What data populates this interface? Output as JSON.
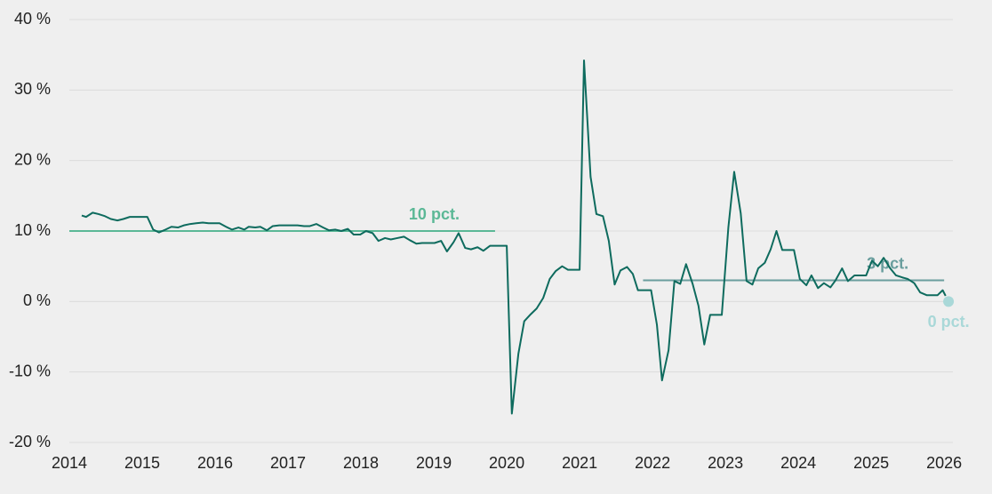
{
  "chart_data": {
    "type": "line",
    "x": [
      2014.17,
      2014.23,
      2014.32,
      2014.4,
      2014.49,
      2014.57,
      2014.66,
      2014.74,
      2014.83,
      2014.91,
      2014.99,
      2015.07,
      2015.15,
      2015.23,
      2015.32,
      2015.4,
      2015.49,
      2015.57,
      2015.66,
      2015.74,
      2015.83,
      2015.91,
      2015.99,
      2016.06,
      2016.15,
      2016.23,
      2016.32,
      2016.4,
      2016.46,
      2016.55,
      2016.62,
      2016.71,
      2016.79,
      2016.88,
      2016.96,
      2017.05,
      2017.13,
      2017.22,
      2017.3,
      2017.39,
      2017.48,
      2017.56,
      2017.65,
      2017.73,
      2017.82,
      2017.9,
      2017.99,
      2018.07,
      2018.16,
      2018.24,
      2018.33,
      2018.41,
      2018.5,
      2018.59,
      2018.67,
      2018.76,
      2018.84,
      2018.93,
      2019.01,
      2019.1,
      2019.18,
      2019.27,
      2019.34,
      2019.43,
      2019.51,
      2019.6,
      2019.68,
      2019.77,
      2019.85,
      2019.94,
      2020.0,
      2020.07,
      2020.16,
      2020.24,
      2020.33,
      2020.41,
      2020.5,
      2020.59,
      2020.67,
      2020.76,
      2020.84,
      2020.93,
      2021.0,
      2021.06,
      2021.15,
      2021.23,
      2021.32,
      2021.4,
      2021.48,
      2021.56,
      2021.65,
      2021.73,
      2021.8,
      2021.89,
      2021.98,
      2022.06,
      2022.13,
      2022.22,
      2022.3,
      2022.38,
      2022.46,
      2022.55,
      2022.63,
      2022.71,
      2022.79,
      2022.88,
      2022.95,
      2023.04,
      2023.12,
      2023.21,
      2023.29,
      2023.37,
      2023.45,
      2023.54,
      2023.62,
      2023.7,
      2023.78,
      2023.87,
      2023.94,
      2024.02,
      2024.11,
      2024.18,
      2024.27,
      2024.35,
      2024.44,
      2024.51,
      2024.6,
      2024.68,
      2024.77,
      2024.84,
      2024.93,
      2025.01,
      2025.09,
      2025.17,
      2025.26,
      2025.34,
      2025.43,
      2025.5,
      2025.59,
      2025.67,
      2025.76,
      2025.84,
      2025.91,
      2025.98,
      2026.02
    ],
    "values": [
      12.2,
      12.0,
      12.6,
      12.4,
      12.1,
      11.7,
      11.5,
      11.7,
      12.0,
      12.0,
      12.0,
      12.0,
      10.2,
      9.8,
      10.2,
      10.6,
      10.5,
      10.8,
      11.0,
      11.1,
      11.2,
      11.1,
      11.1,
      11.1,
      10.6,
      10.2,
      10.5,
      10.2,
      10.6,
      10.5,
      10.6,
      10.1,
      10.7,
      10.8,
      10.8,
      10.8,
      10.8,
      10.7,
      10.7,
      11.0,
      10.5,
      10.1,
      10.2,
      10.0,
      10.3,
      9.5,
      9.5,
      10.0,
      9.7,
      8.6,
      9.0,
      8.8,
      9.0,
      9.2,
      8.7,
      8.2,
      8.3,
      8.3,
      8.3,
      8.6,
      7.1,
      8.4,
      9.7,
      7.6,
      7.4,
      7.7,
      7.2,
      7.9,
      7.9,
      7.9,
      7.9,
      -15.9,
      -7.4,
      -2.8,
      -1.8,
      -1.0,
      0.5,
      3.2,
      4.3,
      5.0,
      4.5,
      4.5,
      4.5,
      34.2,
      17.7,
      12.4,
      12.1,
      8.6,
      2.4,
      4.4,
      4.9,
      3.9,
      1.6,
      1.6,
      1.6,
      -3.3,
      -11.2,
      -6.9,
      2.9,
      2.5,
      5.3,
      2.5,
      -0.6,
      -6.1,
      -1.9,
      -1.9,
      -1.9,
      10.5,
      18.4,
      12.5,
      2.9,
      2.4,
      4.7,
      5.5,
      7.4,
      10.0,
      7.3,
      7.3,
      7.3,
      3.2,
      2.3,
      3.7,
      1.9,
      2.6,
      2.0,
      3.0,
      4.7,
      2.9,
      3.7,
      3.7,
      3.7,
      5.8,
      5.0,
      6.2,
      4.7,
      3.7,
      3.4,
      3.2,
      2.6,
      1.3,
      0.9,
      0.9,
      0.9,
      1.6,
      0.8
    ],
    "color": "#0e6b5e",
    "xlim": [
      2014,
      2026.12
    ],
    "xticks": [
      2014,
      2015,
      2016,
      2017,
      2018,
      2019,
      2020,
      2021,
      2022,
      2023,
      2024,
      2025,
      2026
    ],
    "ylim": [
      -20,
      40
    ],
    "yticks": [
      {
        "value": -20,
        "label": "-20 %"
      },
      {
        "value": -10,
        "label": "-10 %"
      },
      {
        "value": 0,
        "label": "0 %"
      },
      {
        "value": 10,
        "label": "10 %"
      },
      {
        "value": 20,
        "label": "20 %"
      },
      {
        "value": 30,
        "label": "30 %"
      },
      {
        "value": 40,
        "label": "40 %"
      }
    ],
    "grid": true,
    "reference_lines": [
      {
        "label": "10 pct.",
        "value": 10,
        "x": [
          2014,
          2019.84
        ],
        "color": "#5bb896"
      },
      {
        "label": "3 pct.",
        "value": 3,
        "x": [
          2021.87,
          2026.0
        ],
        "color": "#6a9e9e"
      }
    ],
    "point": {
      "label": "0 pct.",
      "x": 2026.06,
      "value": 0,
      "color": "#a9d8d8"
    }
  }
}
